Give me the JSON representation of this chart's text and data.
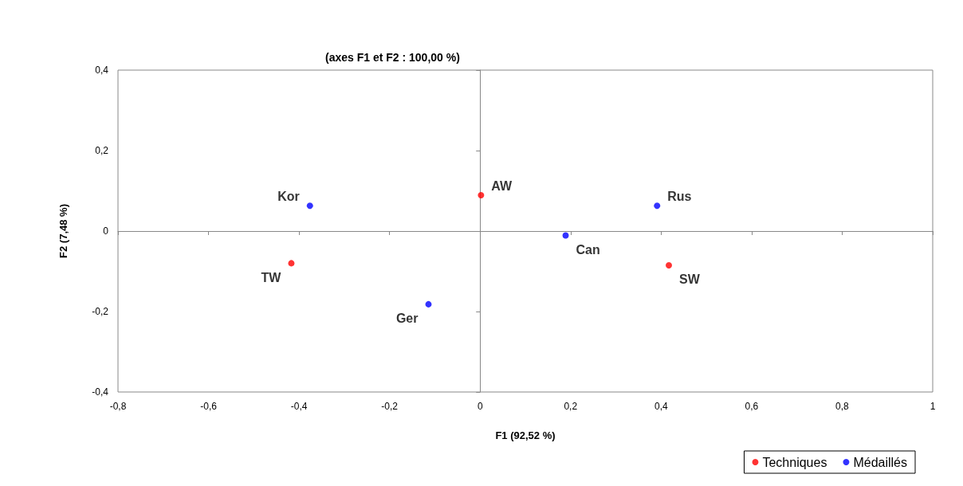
{
  "chart_data": {
    "type": "scatter",
    "title": "(axes F1 et F2 : 100,00 %)",
    "xlabel": "F1 (92,52 %)",
    "ylabel": "F2 (7,48 %)",
    "series": [
      {
        "name": "Techniques",
        "color": "#ff0000",
        "x": [
          -0.417,
          0.002,
          0.417
        ],
        "values": [
          -0.08,
          0.089,
          -0.085
        ]
      },
      {
        "name": "Médaillés",
        "color": "#0000ff",
        "x": [
          -0.376,
          -0.114,
          0.189,
          0.391
        ],
        "values": [
          0.063,
          -0.182,
          -0.011,
          0.063
        ]
      }
    ],
    "annotations": [
      {
        "text": "TW",
        "x": -0.417,
        "y": -0.08
      },
      {
        "text": "AW",
        "x": 0.002,
        "y": 0.089
      },
      {
        "text": "SW",
        "x": 0.417,
        "y": -0.085
      },
      {
        "text": "Kor",
        "x": -0.376,
        "y": 0.063
      },
      {
        "text": "Ger",
        "x": -0.114,
        "y": -0.182
      },
      {
        "text": "Can",
        "x": 0.189,
        "y": -0.011
      },
      {
        "text": "Rus",
        "x": 0.391,
        "y": 0.063
      }
    ],
    "xlim": [
      -0.8,
      1
    ],
    "xticks": [
      {
        "value": -0.8,
        "label": "-0,8"
      },
      {
        "value": -0.6,
        "label": "-0,6"
      },
      {
        "value": -0.4,
        "label": "-0,4"
      },
      {
        "value": -0.2,
        "label": "-0,2"
      },
      {
        "value": 0,
        "label": "0"
      },
      {
        "value": 0.2,
        "label": "0,2"
      },
      {
        "value": 0.4,
        "label": "0,4"
      },
      {
        "value": 0.6,
        "label": "0,6"
      },
      {
        "value": 0.8,
        "label": "0,8"
      },
      {
        "value": 1,
        "label": "1"
      }
    ],
    "ylim": [
      -0.4,
      0.4
    ],
    "yticks": [
      {
        "value": -0.4,
        "label": "-0,4"
      },
      {
        "value": -0.2,
        "label": "-0,2"
      },
      {
        "value": 0,
        "label": "0"
      },
      {
        "value": 0.2,
        "label": "0,2"
      },
      {
        "value": 0.4,
        "label": "0,4"
      }
    ],
    "legend": "bottom right",
    "marker": "circle"
  }
}
